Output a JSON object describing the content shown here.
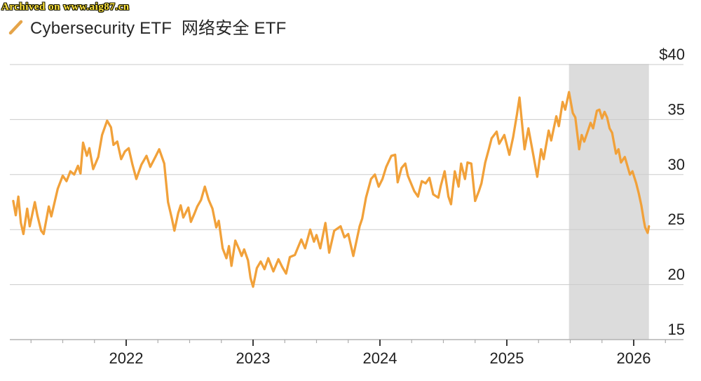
{
  "watermark": {
    "text": "Archived on www.aig87.cn",
    "color": "#ffe33c",
    "outline": "#141400"
  },
  "legend": {
    "label": "Cybersecurity ETF  网络安全 ETF",
    "marker": "orange-slash",
    "marker_color": "#E5A449"
  },
  "chart_data": {
    "type": "line",
    "xlim": [
      2021.08,
      2026.39
    ],
    "ylim": [
      15,
      40
    ],
    "grid": true,
    "legend_position": "top-left",
    "y_ticks": [
      {
        "value": 40,
        "label": "$40"
      },
      {
        "value": 35,
        "label": "35"
      },
      {
        "value": 30,
        "label": "30"
      },
      {
        "value": 25,
        "label": "25"
      },
      {
        "value": 20,
        "label": "20"
      },
      {
        "value": 15,
        "label": "15"
      }
    ],
    "x_major_ticks": [
      {
        "value": 2022,
        "label": "2022"
      },
      {
        "value": 2023,
        "label": "2023"
      },
      {
        "value": 2024,
        "label": "2024"
      },
      {
        "value": 2025,
        "label": "2025"
      },
      {
        "value": 2026,
        "label": "2026"
      }
    ],
    "x_minor_tick_step": 0.25,
    "x_minor_tick_range": [
      2021.25,
      2026.25
    ],
    "shaded_region": {
      "from": 2025.49,
      "to": 2026.12
    },
    "colors": {
      "line": "#F1A13A",
      "band": "#DCDCDC",
      "grid": "#CBCBCB",
      "axis": "#B3B3B3",
      "major_tick": "#3C3C3C",
      "minor_tick": "#ADADAD",
      "text": "#1F1F1F"
    },
    "series": [
      {
        "name": "Cybersecurity ETF 网络安全 ETF",
        "color": "#F1A13A",
        "points": [
          [
            2021.11,
            27.6
          ],
          [
            2021.13,
            26.3
          ],
          [
            2021.15,
            28.0
          ],
          [
            2021.17,
            25.6
          ],
          [
            2021.19,
            24.6
          ],
          [
            2021.22,
            26.9
          ],
          [
            2021.24,
            25.3
          ],
          [
            2021.28,
            27.5
          ],
          [
            2021.3,
            26.3
          ],
          [
            2021.33,
            24.9
          ],
          [
            2021.35,
            24.6
          ],
          [
            2021.39,
            27.1
          ],
          [
            2021.41,
            26.2
          ],
          [
            2021.46,
            28.7
          ],
          [
            2021.5,
            29.9
          ],
          [
            2021.53,
            29.4
          ],
          [
            2021.56,
            30.3
          ],
          [
            2021.59,
            30.0
          ],
          [
            2021.62,
            30.8
          ],
          [
            2021.64,
            30.1
          ],
          [
            2021.66,
            32.9
          ],
          [
            2021.69,
            31.7
          ],
          [
            2021.71,
            32.4
          ],
          [
            2021.74,
            30.5
          ],
          [
            2021.78,
            31.6
          ],
          [
            2021.81,
            33.6
          ],
          [
            2021.85,
            34.9
          ],
          [
            2021.88,
            34.3
          ],
          [
            2021.9,
            32.7
          ],
          [
            2021.93,
            33.0
          ],
          [
            2021.96,
            31.4
          ],
          [
            2021.99,
            32.1
          ],
          [
            2022.02,
            32.4
          ],
          [
            2022.05,
            30.9
          ],
          [
            2022.08,
            29.6
          ],
          [
            2022.12,
            30.9
          ],
          [
            2022.16,
            31.7
          ],
          [
            2022.19,
            30.7
          ],
          [
            2022.23,
            31.6
          ],
          [
            2022.26,
            32.3
          ],
          [
            2022.3,
            31.0
          ],
          [
            2022.33,
            27.5
          ],
          [
            2022.36,
            26.0
          ],
          [
            2022.38,
            24.9
          ],
          [
            2022.41,
            26.5
          ],
          [
            2022.43,
            27.2
          ],
          [
            2022.45,
            26.1
          ],
          [
            2022.49,
            27.0
          ],
          [
            2022.51,
            25.7
          ],
          [
            2022.54,
            26.5
          ],
          [
            2022.56,
            27.1
          ],
          [
            2022.59,
            27.7
          ],
          [
            2022.62,
            28.9
          ],
          [
            2022.65,
            27.7
          ],
          [
            2022.68,
            26.9
          ],
          [
            2022.71,
            25.2
          ],
          [
            2022.73,
            25.8
          ],
          [
            2022.76,
            23.3
          ],
          [
            2022.79,
            22.4
          ],
          [
            2022.81,
            23.5
          ],
          [
            2022.83,
            21.7
          ],
          [
            2022.86,
            24.0
          ],
          [
            2022.89,
            23.2
          ],
          [
            2022.91,
            22.6
          ],
          [
            2022.93,
            23.2
          ],
          [
            2022.96,
            22.2
          ],
          [
            2022.98,
            20.6
          ],
          [
            2023.0,
            19.8
          ],
          [
            2023.03,
            21.5
          ],
          [
            2023.06,
            22.1
          ],
          [
            2023.09,
            21.4
          ],
          [
            2023.12,
            22.4
          ],
          [
            2023.16,
            21.2
          ],
          [
            2023.2,
            22.3
          ],
          [
            2023.23,
            21.6
          ],
          [
            2023.26,
            21.0
          ],
          [
            2023.29,
            22.5
          ],
          [
            2023.33,
            22.7
          ],
          [
            2023.38,
            24.1
          ],
          [
            2023.41,
            23.3
          ],
          [
            2023.45,
            25.0
          ],
          [
            2023.48,
            23.9
          ],
          [
            2023.5,
            24.5
          ],
          [
            2023.53,
            23.3
          ],
          [
            2023.57,
            25.6
          ],
          [
            2023.6,
            22.9
          ],
          [
            2023.64,
            24.9
          ],
          [
            2023.69,
            25.3
          ],
          [
            2023.72,
            24.3
          ],
          [
            2023.75,
            24.6
          ],
          [
            2023.79,
            22.6
          ],
          [
            2023.84,
            25.3
          ],
          [
            2023.86,
            26.0
          ],
          [
            2023.89,
            27.9
          ],
          [
            2023.93,
            29.6
          ],
          [
            2023.96,
            30.0
          ],
          [
            2023.99,
            28.9
          ],
          [
            2024.02,
            29.6
          ],
          [
            2024.05,
            30.7
          ],
          [
            2024.09,
            31.7
          ],
          [
            2024.12,
            31.8
          ],
          [
            2024.14,
            29.3
          ],
          [
            2024.17,
            30.6
          ],
          [
            2024.2,
            31.0
          ],
          [
            2024.22,
            29.9
          ],
          [
            2024.27,
            28.5
          ],
          [
            2024.3,
            28.0
          ],
          [
            2024.33,
            29.4
          ],
          [
            2024.36,
            29.2
          ],
          [
            2024.39,
            29.7
          ],
          [
            2024.42,
            28.2
          ],
          [
            2024.46,
            27.9
          ],
          [
            2024.48,
            29.0
          ],
          [
            2024.51,
            30.3
          ],
          [
            2024.54,
            28.0
          ],
          [
            2024.56,
            27.3
          ],
          [
            2024.59,
            30.3
          ],
          [
            2024.62,
            28.9
          ],
          [
            2024.64,
            31.0
          ],
          [
            2024.67,
            29.6
          ],
          [
            2024.69,
            31.1
          ],
          [
            2024.72,
            31.0
          ],
          [
            2024.75,
            27.6
          ],
          [
            2024.78,
            28.5
          ],
          [
            2024.8,
            29.2
          ],
          [
            2024.83,
            31.1
          ],
          [
            2024.86,
            32.4
          ],
          [
            2024.88,
            33.3
          ],
          [
            2024.92,
            33.9
          ],
          [
            2024.94,
            32.8
          ],
          [
            2024.98,
            33.6
          ],
          [
            2025.02,
            31.8
          ],
          [
            2025.05,
            33.4
          ],
          [
            2025.08,
            35.5
          ],
          [
            2025.1,
            37.0
          ],
          [
            2025.14,
            32.3
          ],
          [
            2025.17,
            34.2
          ],
          [
            2025.21,
            31.7
          ],
          [
            2025.24,
            29.8
          ],
          [
            2025.27,
            32.3
          ],
          [
            2025.29,
            31.4
          ],
          [
            2025.33,
            34.0
          ],
          [
            2025.35,
            33.1
          ],
          [
            2025.39,
            35.3
          ],
          [
            2025.41,
            34.4
          ],
          [
            2025.44,
            36.6
          ],
          [
            2025.46,
            35.9
          ],
          [
            2025.49,
            37.5
          ],
          [
            2025.52,
            35.6
          ],
          [
            2025.54,
            35.2
          ],
          [
            2025.57,
            32.3
          ],
          [
            2025.59,
            33.6
          ],
          [
            2025.61,
            33.0
          ],
          [
            2025.64,
            34.0
          ],
          [
            2025.66,
            34.7
          ],
          [
            2025.68,
            34.2
          ],
          [
            2025.71,
            35.8
          ],
          [
            2025.73,
            35.9
          ],
          [
            2025.75,
            35.1
          ],
          [
            2025.77,
            35.7
          ],
          [
            2025.79,
            35.2
          ],
          [
            2025.81,
            34.2
          ],
          [
            2025.83,
            33.8
          ],
          [
            2025.86,
            31.9
          ],
          [
            2025.88,
            32.3
          ],
          [
            2025.9,
            31.1
          ],
          [
            2025.93,
            31.6
          ],
          [
            2025.95,
            30.8
          ],
          [
            2025.97,
            30.0
          ],
          [
            2025.99,
            30.3
          ],
          [
            2026.02,
            29.2
          ],
          [
            2026.04,
            28.3
          ],
          [
            2026.06,
            27.2
          ],
          [
            2026.08,
            25.8
          ],
          [
            2026.09,
            25.2
          ],
          [
            2026.11,
            24.7
          ],
          [
            2026.12,
            25.3
          ]
        ]
      }
    ]
  }
}
